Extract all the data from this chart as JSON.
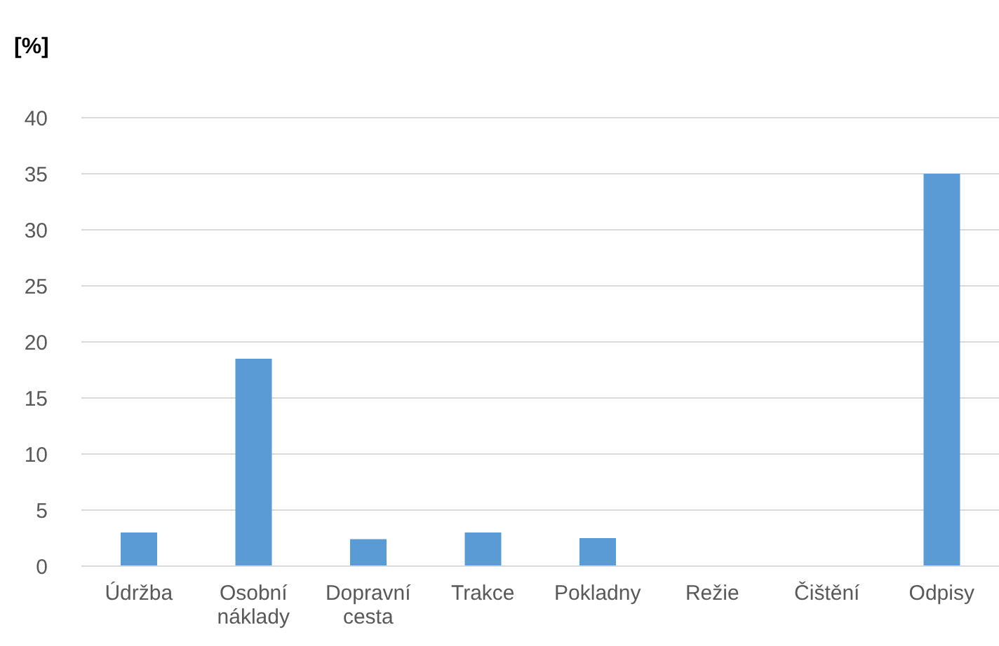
{
  "chart_data": {
    "type": "bar",
    "ylabel": "[%]",
    "categories": [
      "Údržba",
      "Osobní náklady",
      "Dopravní cesta",
      "Trakce",
      "Pokladny",
      "Režie",
      "Čištění",
      "Odpisy"
    ],
    "values": [
      3,
      18.5,
      2.4,
      3,
      2.5,
      0,
      0,
      35
    ],
    "color": "#5b9bd5",
    "ylim": [
      0,
      40
    ],
    "yticks": [
      0,
      5,
      10,
      15,
      20,
      25,
      30,
      35,
      40
    ],
    "grid": "y"
  }
}
